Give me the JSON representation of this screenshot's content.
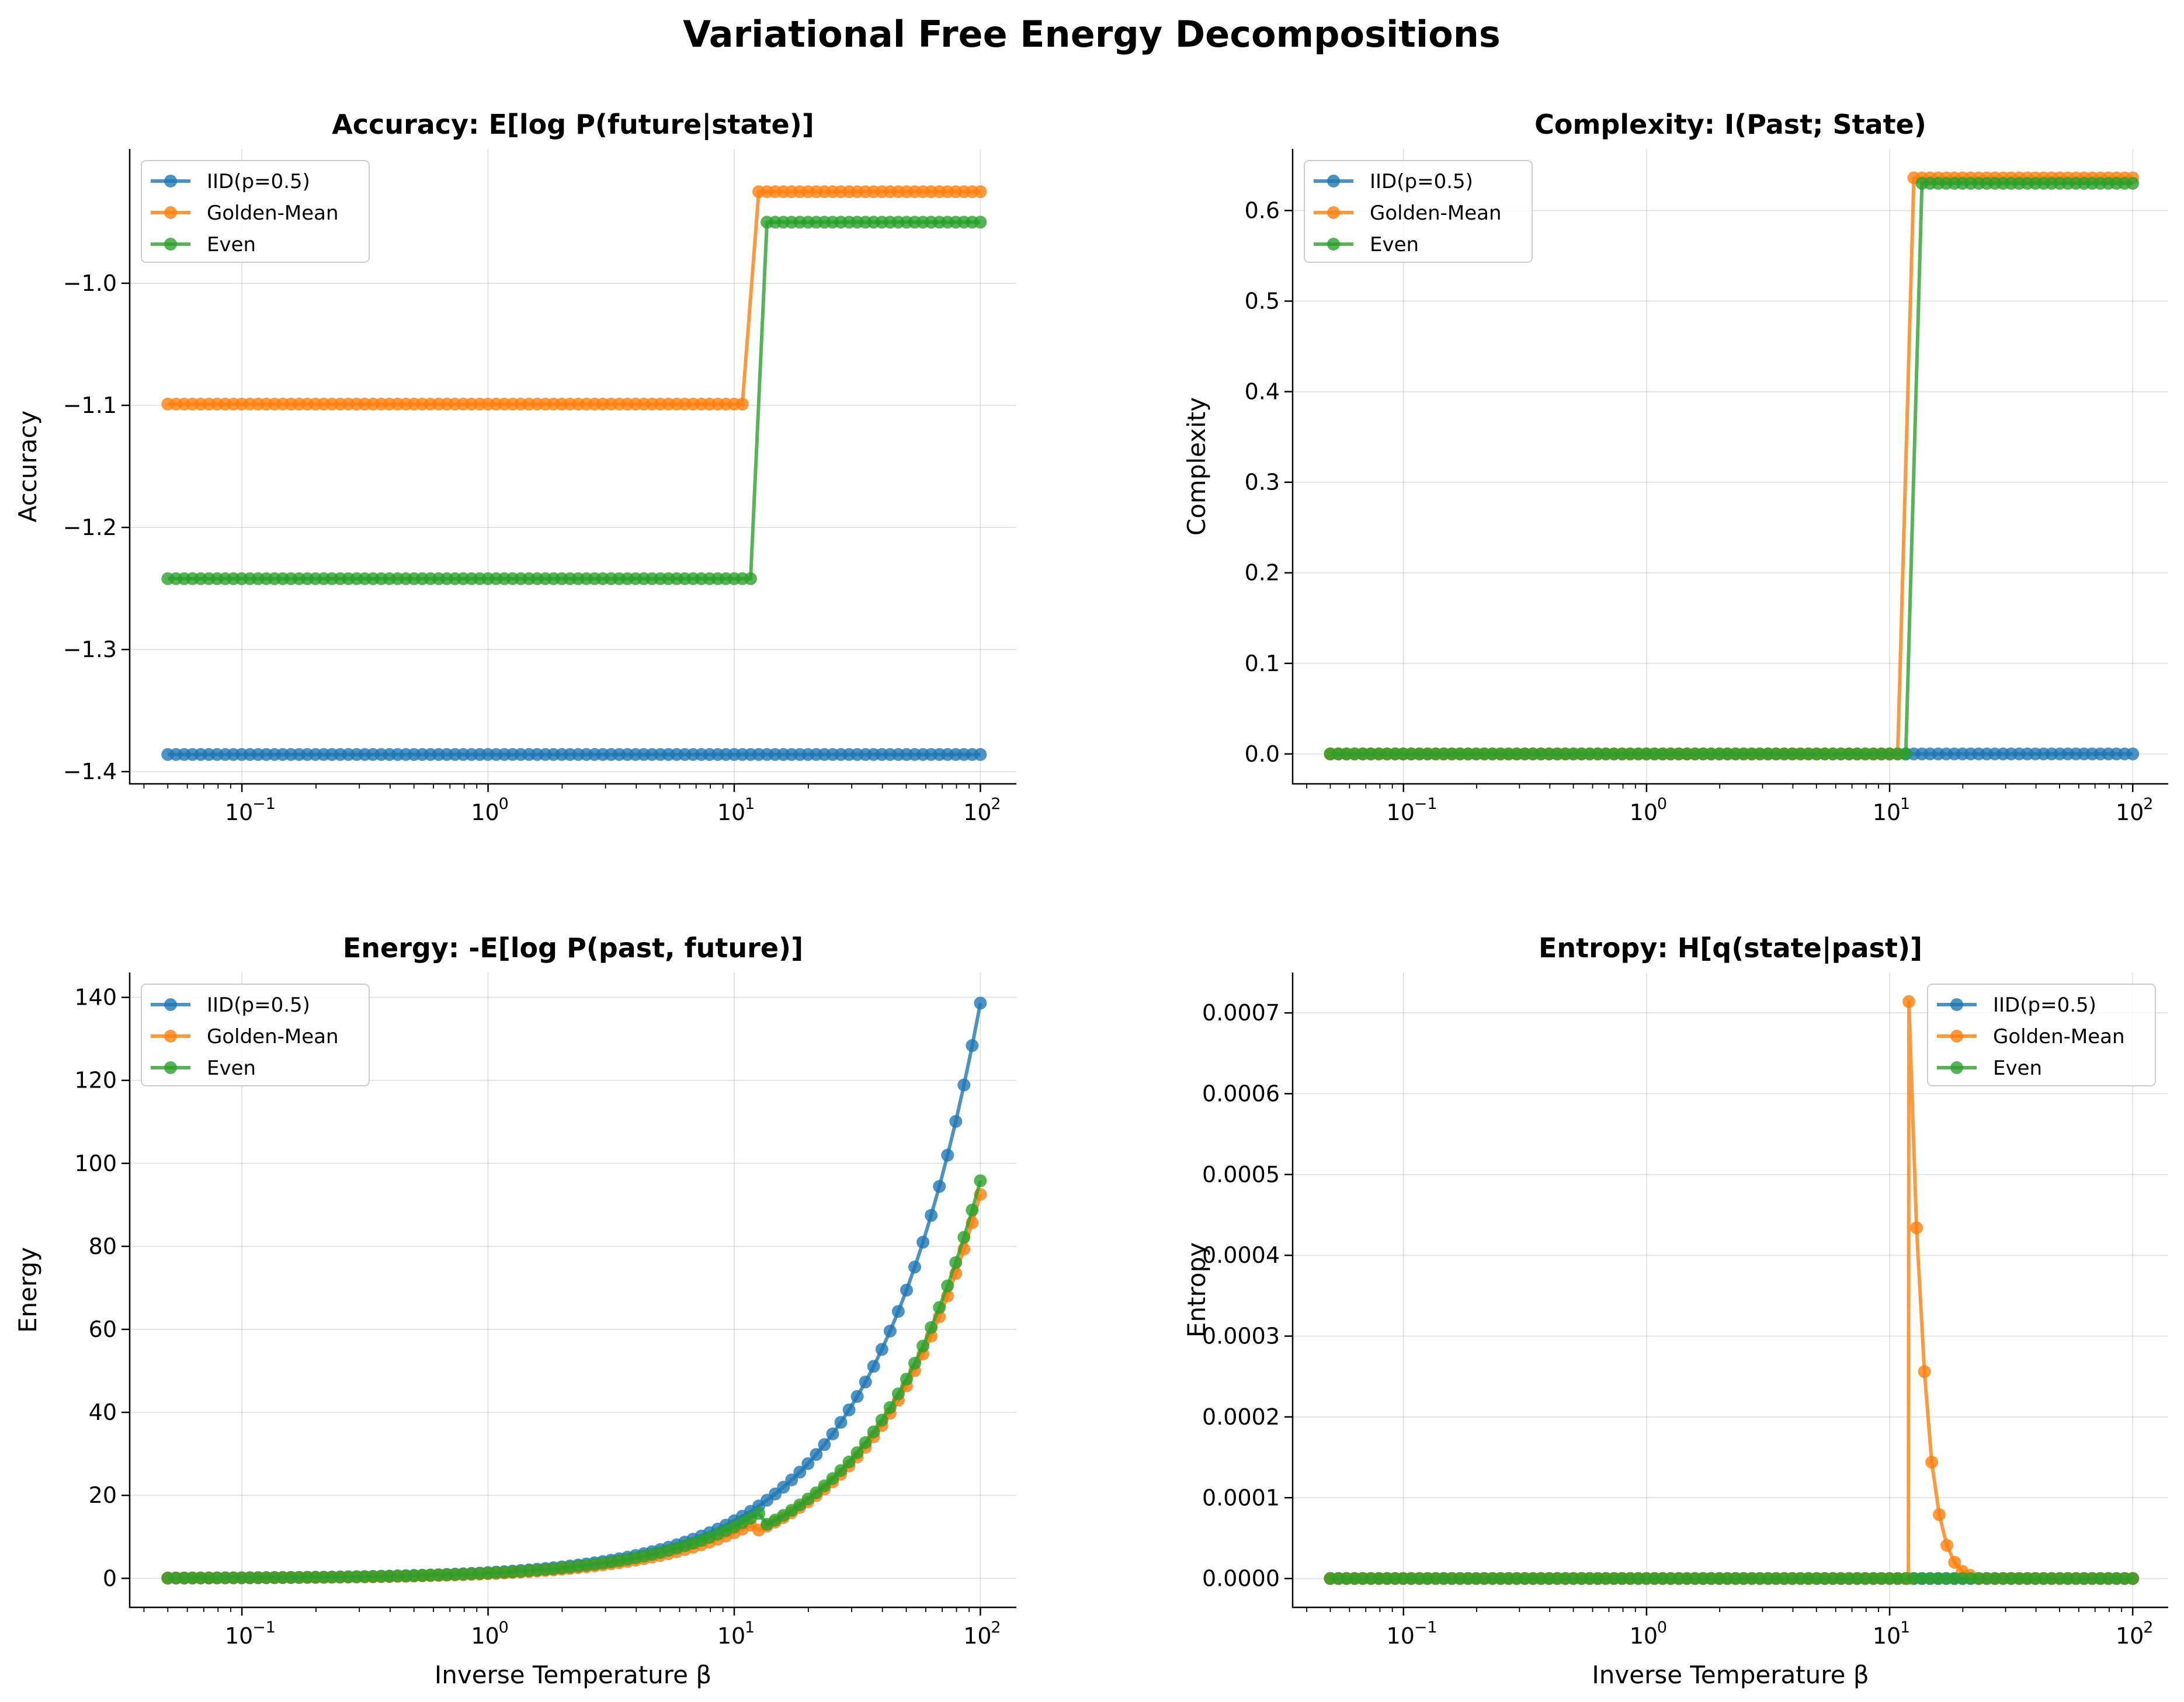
{
  "figure": {
    "title": "Variational Free Energy Decompositions"
  },
  "colors": {
    "IID(p=0.5)": "#1f77b4",
    "Golden-Mean": "#ff7f0e",
    "Even": "#2ca02c"
  },
  "chart_data": [
    {
      "type": "line",
      "title": "Accuracy: E[log P(future|state)]",
      "xlabel": "",
      "ylabel": "Accuracy",
      "xscale": "log",
      "xlim": [
        0.035,
        140
      ],
      "ylim": [
        -1.41,
        -0.89
      ],
      "yticks": [
        -1.4,
        -1.3,
        -1.2,
        -1.1,
        -1.0
      ],
      "ytick_labels": [
        "−1.4",
        "−1.3",
        "−1.2",
        "−1.1",
        "−1.0"
      ],
      "grid": true,
      "legend": "top-left",
      "beta_range": [
        0.05,
        100
      ],
      "points_per_series": 100,
      "series": [
        {
          "name": "IID(p=0.5)",
          "segments": [
            {
              "from": 0.05,
              "to": 100,
              "value": -1.386
            }
          ]
        },
        {
          "name": "Golden-Mean",
          "segments": [
            {
              "from": 0.05,
              "to": 11.5,
              "value": -1.099
            },
            {
              "from": 12.0,
              "to": 100,
              "value": -0.925
            }
          ]
        },
        {
          "name": "Even",
          "segments": [
            {
              "from": 0.05,
              "to": 12.5,
              "value": -1.242
            },
            {
              "from": 13.2,
              "to": 100,
              "value": -0.95
            }
          ]
        }
      ]
    },
    {
      "type": "line",
      "title": "Complexity: I(Past; State)",
      "xlabel": "",
      "ylabel": "Complexity",
      "xscale": "log",
      "xlim": [
        0.035,
        140
      ],
      "ylim": [
        -0.033,
        0.668
      ],
      "yticks": [
        0.0,
        0.1,
        0.2,
        0.3,
        0.4,
        0.5,
        0.6
      ],
      "ytick_labels": [
        "0.0",
        "0.1",
        "0.2",
        "0.3",
        "0.4",
        "0.5",
        "0.6"
      ],
      "grid": true,
      "legend": "top-left",
      "beta_range": [
        0.05,
        100
      ],
      "points_per_series": 100,
      "series": [
        {
          "name": "IID(p=0.5)",
          "segments": [
            {
              "from": 0.05,
              "to": 100,
              "value": 0.0
            }
          ]
        },
        {
          "name": "Golden-Mean",
          "segments": [
            {
              "from": 0.05,
              "to": 11.5,
              "value": 0.0
            },
            {
              "from": 12.0,
              "to": 100,
              "value": 0.636
            }
          ]
        },
        {
          "name": "Even",
          "segments": [
            {
              "from": 0.05,
              "to": 12.5,
              "value": 0.0
            },
            {
              "from": 13.2,
              "to": 100,
              "value": 0.63
            }
          ]
        }
      ]
    },
    {
      "type": "line",
      "title": "Energy: -E[log P(past, future)]",
      "xlabel": "Inverse Temperature β",
      "ylabel": "Energy",
      "xscale": "log",
      "xlim": [
        0.035,
        140
      ],
      "ylim": [
        -7,
        146
      ],
      "yticks": [
        0,
        20,
        40,
        60,
        80,
        100,
        120,
        140
      ],
      "ytick_labels": [
        "0",
        "20",
        "40",
        "60",
        "80",
        "100",
        "120",
        "140"
      ],
      "grid": true,
      "legend": "top-left",
      "beta_range": [
        0.05,
        100
      ],
      "points_per_series": 100,
      "series": [
        {
          "name": "IID(p=0.5)",
          "slope": 1.3863
        },
        {
          "name": "Golden-Mean",
          "slope": 1.0986,
          "after_jump_slope": 0.9251,
          "jump_at": 12.0
        },
        {
          "name": "Even",
          "slope": 1.2425,
          "after_jump_slope": 0.958,
          "jump_at": 13.2
        }
      ]
    },
    {
      "type": "line",
      "title": "Entropy: H[q(state|past)]",
      "xlabel": "Inverse Temperature β",
      "ylabel": "Entropy",
      "xscale": "log",
      "xlim": [
        0.035,
        140
      ],
      "ylim": [
        -3.57e-05,
        0.00075
      ],
      "yticks": [
        0.0,
        0.0001,
        0.0002,
        0.0003,
        0.0004,
        0.0005,
        0.0006,
        0.0007
      ],
      "ytick_labels": [
        "0.0000",
        "0.0001",
        "0.0002",
        "0.0003",
        "0.0004",
        "0.0005",
        "0.0006",
        "0.0007"
      ],
      "grid": true,
      "legend": "top-right",
      "beta_range": [
        0.05,
        100
      ],
      "points_per_series": 100,
      "series": [
        {
          "name": "IID(p=0.5)",
          "segments": [
            {
              "from": 0.05,
              "to": 100,
              "value": 0.0
            }
          ]
        },
        {
          "name": "Golden-Mean",
          "peak": [
            [
              12.0,
              0.000714
            ],
            [
              12.9,
              0.000434
            ],
            [
              13.9,
              0.000256
            ],
            [
              14.9,
              0.000144
            ],
            [
              16.0,
              7.9e-05
            ],
            [
              17.2,
              4.1e-05
            ],
            [
              18.5,
              2e-05
            ],
            [
              19.9,
              9e-06
            ],
            [
              21.4,
              4e-06
            ]
          ]
        },
        {
          "name": "Even",
          "segments": [
            {
              "from": 0.05,
              "to": 100,
              "value": 0.0
            }
          ]
        }
      ]
    }
  ],
  "xtick_labels": [
    "10",
    "−1",
    "10",
    "0",
    "10",
    "1",
    "10",
    "2"
  ]
}
